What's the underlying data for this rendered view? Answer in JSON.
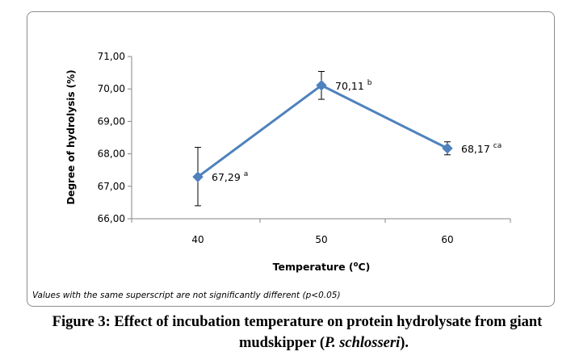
{
  "chart_data": {
    "type": "line",
    "x": [
      40,
      50,
      60
    ],
    "categories": [
      "40",
      "50",
      "60"
    ],
    "values": [
      67.29,
      70.11,
      68.17
    ],
    "error_low": [
      66.4,
      69.68,
      67.97
    ],
    "error_high": [
      68.2,
      70.54,
      68.37
    ],
    "point_labels": [
      "67,29",
      "70,11",
      "68,17"
    ],
    "superscripts": [
      "a",
      "b",
      "ca"
    ],
    "ylim": [
      66,
      71
    ],
    "yticks": [
      66,
      67,
      68,
      69,
      70,
      71
    ],
    "ytick_labels": [
      "66,00",
      "67,00",
      "68,00",
      "69,00",
      "70,00",
      "71,00"
    ],
    "xlabel_main": "Temperature (",
    "xlabel_sup": "o",
    "xlabel_tail": "C)",
    "ylabel": "Degree of hydrolysis (%)",
    "grid": false,
    "line_color": "#4f81bd"
  },
  "footnote": "Values with the same superscript are not significantly different (p<0.05)",
  "caption": {
    "line1": "Figure 3: Effect of incubation temperature on protein hydrolysate from giant",
    "line2_prefix": "mudskipper (",
    "line2_species": "P. schlosseri",
    "line2_suffix": ")."
  }
}
